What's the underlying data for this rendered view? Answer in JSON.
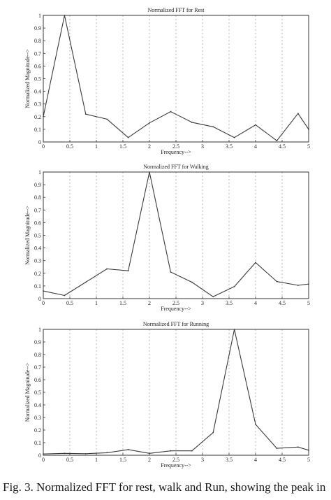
{
  "figure": {
    "caption": "Fig. 3. Normalized FFT for rest, walk and Run, showing the peak in"
  },
  "colors": {
    "axis": "#333333",
    "grid": "#9a9a9a",
    "line": "#3a3a3a",
    "text": "#222222"
  },
  "chart_data": [
    {
      "type": "line",
      "title": "Normalized FFT for Rest",
      "xlabel": "Frequency-->",
      "ylabel": "Normalized Magnitude-->",
      "xlim": [
        0,
        5
      ],
      "ylim": [
        0,
        1
      ],
      "xticks": [
        "0",
        "0.5",
        "1",
        "1.5",
        "2",
        "2.5",
        "3",
        "3.5",
        "4",
        "4.5",
        "5"
      ],
      "yticks": [
        "0",
        "0.1",
        "0.2",
        "0.3",
        "0.4",
        "0.5",
        "0.6",
        "0.7",
        "0.8",
        "0.9",
        "1"
      ],
      "grid": "vertical",
      "series": [
        {
          "x": [
            0,
            0.4,
            0.8,
            1.2,
            1.6,
            2.0,
            2.4,
            2.8,
            3.2,
            3.6,
            4.0,
            4.4,
            4.8,
            5.0
          ],
          "values": [
            0.2,
            1.0,
            0.22,
            0.18,
            0.035,
            0.15,
            0.24,
            0.155,
            0.12,
            0.035,
            0.135,
            0.01,
            0.225,
            0.1
          ]
        }
      ]
    },
    {
      "type": "line",
      "title": "Normalized FFT for Walking",
      "xlabel": "Frequency-->",
      "ylabel": "Normalized Magnitude-->",
      "xlim": [
        0,
        5
      ],
      "ylim": [
        0,
        1
      ],
      "xticks": [
        "0",
        "0.5",
        "1",
        "1.5",
        "2",
        "2.5",
        "3",
        "3.5",
        "4",
        "4.5",
        "5"
      ],
      "yticks": [
        "0",
        "0.1",
        "0.2",
        "0.3",
        "0.4",
        "0.5",
        "0.6",
        "0.7",
        "0.8",
        "0.9",
        "1"
      ],
      "grid": "vertical",
      "series": [
        {
          "x": [
            0,
            0.4,
            0.8,
            1.2,
            1.6,
            2.0,
            2.4,
            2.8,
            3.2,
            3.6,
            4.0,
            4.4,
            4.8,
            5.0
          ],
          "values": [
            0.06,
            0.025,
            0.13,
            0.235,
            0.22,
            1.0,
            0.21,
            0.13,
            0.015,
            0.095,
            0.285,
            0.135,
            0.105,
            0.115
          ]
        }
      ]
    },
    {
      "type": "line",
      "title": "Normalized FFT for Running",
      "xlabel": "Frequency-->",
      "ylabel": "Normalized Magnitude-->",
      "xlim": [
        0,
        5
      ],
      "ylim": [
        0,
        1
      ],
      "xticks": [
        "0",
        "0.5",
        "1",
        "1.5",
        "2",
        "2.5",
        "3",
        "3.5",
        "4",
        "4.5",
        "5"
      ],
      "yticks": [
        "0",
        "0.1",
        "0.2",
        "0.3",
        "0.4",
        "0.5",
        "0.6",
        "0.7",
        "0.8",
        "0.9",
        "1"
      ],
      "grid": "vertical",
      "series": [
        {
          "x": [
            0,
            0.4,
            0.8,
            1.2,
            1.6,
            2.0,
            2.4,
            2.8,
            3.2,
            3.6,
            4.0,
            4.4,
            4.8,
            5.0
          ],
          "values": [
            0.01,
            0.015,
            0.012,
            0.02,
            0.045,
            0.015,
            0.035,
            0.035,
            0.18,
            1.0,
            0.245,
            0.055,
            0.065,
            0.04
          ]
        }
      ]
    }
  ]
}
